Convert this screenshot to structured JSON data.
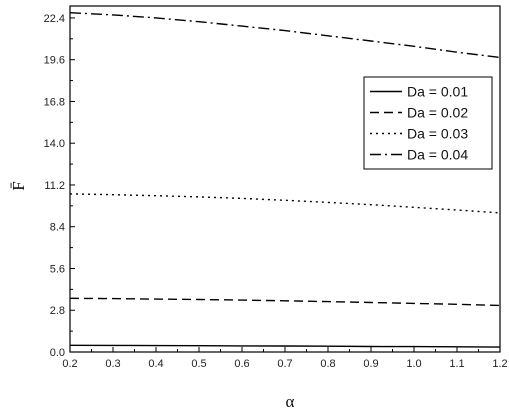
{
  "chart_data": {
    "type": "line",
    "xlabel": "α",
    "ylabel": "F̄",
    "xlim": [
      0.2,
      1.2
    ],
    "ylim": [
      0.0,
      23.2
    ],
    "xticks": [
      "0.2",
      "0.3",
      "0.4",
      "0.5",
      "0.6",
      "0.7",
      "0.8",
      "0.9",
      "1.0",
      "1.1",
      "1.2"
    ],
    "yticks": [
      "0.0",
      "2.8",
      "5.6",
      "8.4",
      "11.2",
      "14.0",
      "16.8",
      "19.6",
      "22.4"
    ],
    "grid": false,
    "legend_position": "top-right",
    "series": [
      {
        "name": "Da = 0.01",
        "dash": "solid",
        "x": [
          0.2,
          0.3,
          0.4,
          0.5,
          0.6,
          0.7,
          0.8,
          0.9,
          1.0,
          1.1,
          1.2
        ],
        "y": [
          0.45,
          0.44,
          0.43,
          0.42,
          0.41,
          0.4,
          0.39,
          0.37,
          0.36,
          0.35,
          0.33
        ]
      },
      {
        "name": "Da = 0.02",
        "dash": "dashed",
        "x": [
          0.2,
          0.3,
          0.4,
          0.5,
          0.6,
          0.7,
          0.8,
          0.9,
          1.0,
          1.1,
          1.2
        ],
        "y": [
          3.6,
          3.58,
          3.55,
          3.52,
          3.48,
          3.43,
          3.38,
          3.32,
          3.26,
          3.2,
          3.12
        ]
      },
      {
        "name": "Da = 0.03",
        "dash": "dotted",
        "x": [
          0.2,
          0.3,
          0.4,
          0.5,
          0.6,
          0.7,
          0.8,
          0.9,
          1.0,
          1.1,
          1.2
        ],
        "y": [
          10.6,
          10.55,
          10.48,
          10.4,
          10.3,
          10.17,
          10.03,
          9.88,
          9.7,
          9.52,
          9.33
        ]
      },
      {
        "name": "Da = 0.04",
        "dash": "dashdot",
        "x": [
          0.2,
          0.3,
          0.4,
          0.5,
          0.6,
          0.7,
          0.8,
          0.9,
          1.0,
          1.1,
          1.2
        ],
        "y": [
          22.75,
          22.6,
          22.4,
          22.15,
          21.85,
          21.55,
          21.2,
          20.85,
          20.5,
          20.1,
          19.75
        ]
      }
    ]
  }
}
